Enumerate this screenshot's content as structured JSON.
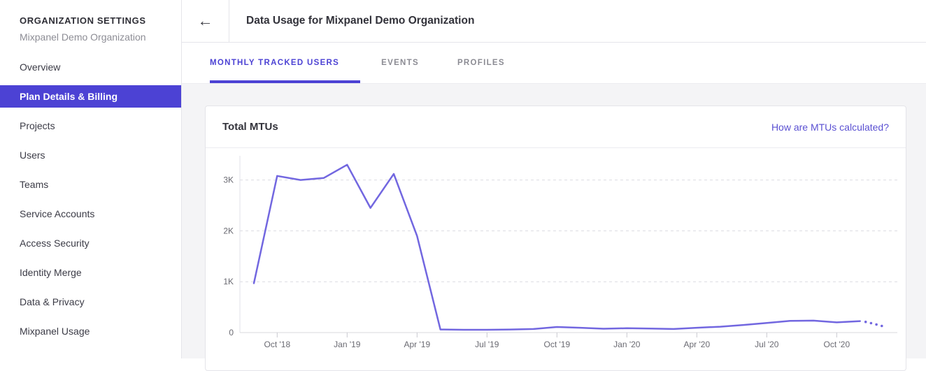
{
  "sidebar": {
    "section_title": "ORGANIZATION SETTINGS",
    "org_name": "Mixpanel Demo Organization",
    "items": [
      {
        "label": "Overview",
        "active": false
      },
      {
        "label": "Plan Details & Billing",
        "active": true
      },
      {
        "label": "Projects",
        "active": false
      },
      {
        "label": "Users",
        "active": false
      },
      {
        "label": "Teams",
        "active": false
      },
      {
        "label": "Service Accounts",
        "active": false
      },
      {
        "label": "Access Security",
        "active": false
      },
      {
        "label": "Identity Merge",
        "active": false
      },
      {
        "label": "Data & Privacy",
        "active": false
      },
      {
        "label": "Mixpanel Usage",
        "active": false
      }
    ]
  },
  "header": {
    "back_icon": "←",
    "title": "Data Usage for Mixpanel Demo Organization"
  },
  "tabs": [
    {
      "label": "MONTHLY TRACKED USERS",
      "active": true
    },
    {
      "label": "EVENTS",
      "active": false
    },
    {
      "label": "PROFILES",
      "active": false
    }
  ],
  "card": {
    "title": "Total MTUs",
    "link": "How are MTUs calculated?"
  },
  "colors": {
    "accent": "#4c42d4",
    "link": "#5a50d2",
    "chart_line": "#7267e0",
    "sidebar_active_bg": "#4c42d4"
  },
  "chart_data": {
    "type": "line",
    "title": "Total MTUs",
    "ylabel": "",
    "xlabel": "",
    "ylim": [
      0,
      3500
    ],
    "grid": true,
    "legend": false,
    "y_tick_labels": [
      "0",
      "1K",
      "2K",
      "3K"
    ],
    "y_tick_values": [
      0,
      1000,
      2000,
      3000
    ],
    "x_tick_labels": [
      "Oct '18",
      "Jan '19",
      "Apr '19",
      "Jul '19",
      "Oct '19",
      "Jan '20",
      "Apr '20",
      "Jul '20",
      "Oct '20"
    ],
    "x_tick_indices": [
      1,
      4,
      7,
      10,
      13,
      16,
      19,
      22,
      25
    ],
    "categories": [
      "Sep '18",
      "Oct '18",
      "Nov '18",
      "Dec '18",
      "Jan '19",
      "Feb '19",
      "Mar '19",
      "Apr '19",
      "May '19",
      "Jun '19",
      "Jul '19",
      "Aug '19",
      "Sep '19",
      "Oct '19",
      "Nov '19",
      "Dec '19",
      "Jan '20",
      "Feb '20",
      "Mar '20",
      "Apr '20",
      "May '20",
      "Jun '20",
      "Jul '20",
      "Aug '20",
      "Sep '20",
      "Oct '20",
      "Nov '20"
    ],
    "values": [
      970,
      3080,
      3000,
      3040,
      3300,
      2450,
      3120,
      1900,
      60,
      55,
      55,
      60,
      70,
      110,
      95,
      75,
      85,
      80,
      70,
      95,
      115,
      150,
      190,
      230,
      235,
      200,
      225
    ],
    "forecast_values": [
      210,
      185,
      160,
      130
    ]
  }
}
